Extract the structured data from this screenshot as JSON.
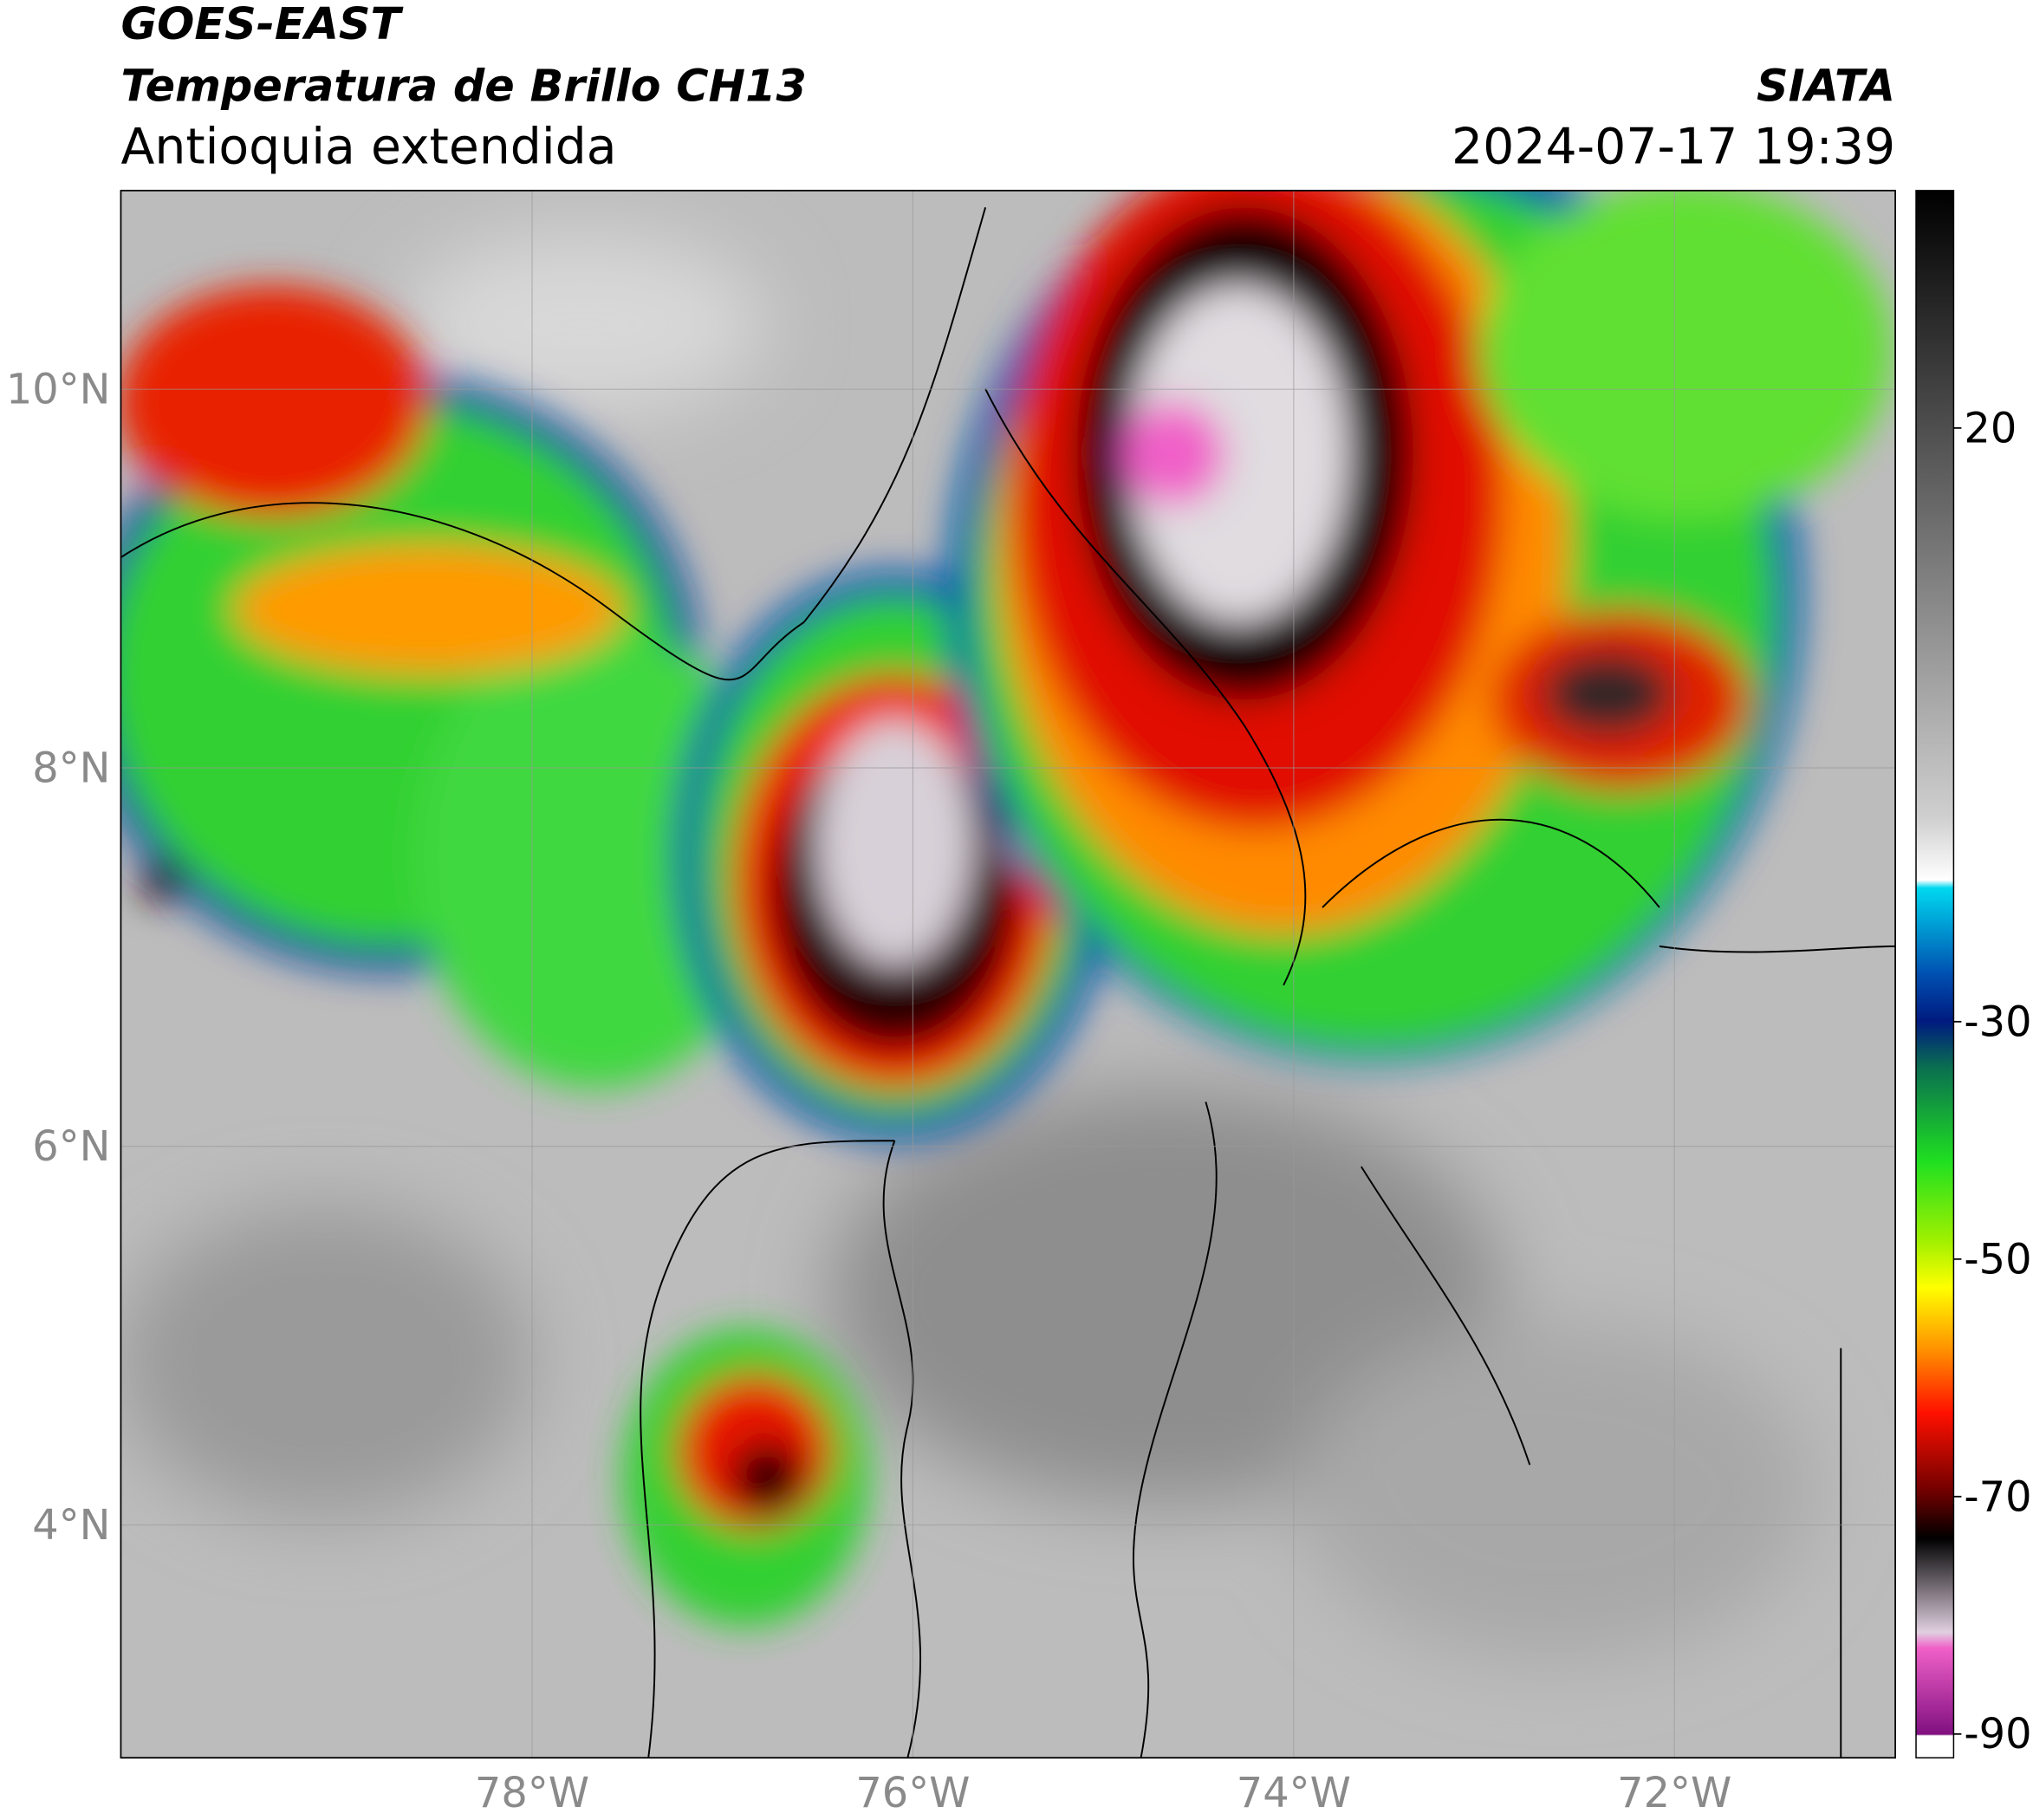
{
  "header": {
    "source": "GOES-EAST",
    "product": "Temperatura de Brillo CH13",
    "region": "Antioquia extendida",
    "organization": "SIATA",
    "datetime": "2024-07-17 19:39"
  },
  "map": {
    "xlim": [
      -80.16,
      -70.84
    ],
    "ylim": [
      2.77,
      11.05
    ],
    "xticks": [
      {
        "value": -78,
        "label": "78°W"
      },
      {
        "value": -76,
        "label": "76°W"
      },
      {
        "value": -74,
        "label": "74°W"
      },
      {
        "value": -72,
        "label": "72°W"
      }
    ],
    "yticks": [
      {
        "value": 4,
        "label": "4°N"
      },
      {
        "value": 6,
        "label": "6°N"
      },
      {
        "value": 8,
        "label": "8°N"
      },
      {
        "value": 10,
        "label": "10°N"
      }
    ],
    "grid": true
  },
  "colorbar": {
    "lim": [
      -92,
      40
    ],
    "ticks": [
      20,
      -30,
      -50,
      -70,
      -90
    ]
  }
}
